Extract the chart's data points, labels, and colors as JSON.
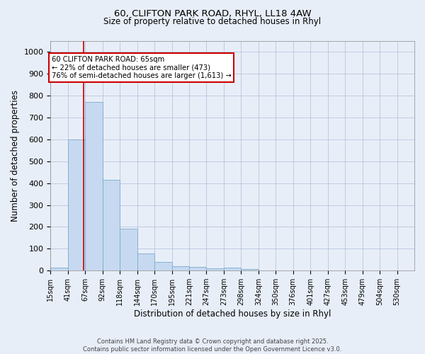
{
  "title1": "60, CLIFTON PARK ROAD, RHYL, LL18 4AW",
  "title2": "Size of property relative to detached houses in Rhyl",
  "xlabel": "Distribution of detached houses by size in Rhyl",
  "ylabel": "Number of detached properties",
  "bin_labels": [
    "15sqm",
    "41sqm",
    "67sqm",
    "92sqm",
    "118sqm",
    "144sqm",
    "170sqm",
    "195sqm",
    "221sqm",
    "247sqm",
    "273sqm",
    "298sqm",
    "324sqm",
    "350sqm",
    "376sqm",
    "401sqm",
    "427sqm",
    "453sqm",
    "479sqm",
    "504sqm",
    "530sqm"
  ],
  "bar_values": [
    15,
    600,
    770,
    415,
    193,
    78,
    40,
    20,
    18,
    12,
    15,
    8,
    2,
    1,
    0,
    0,
    0,
    0,
    0,
    0,
    0
  ],
  "bar_color": "#c6d9f0",
  "bar_edge_color": "#7aacce",
  "annotation_title": "60 CLIFTON PARK ROAD: 65sqm",
  "annotation_line1": "← 22% of detached houses are smaller (473)",
  "annotation_line2": "76% of semi-detached houses are larger (1,613) →",
  "annotation_box_color": "#ffffff",
  "annotation_box_edge_color": "#cc0000",
  "red_line_color": "#cc0000",
  "ylim": [
    0,
    1050
  ],
  "yticks": [
    0,
    100,
    200,
    300,
    400,
    500,
    600,
    700,
    800,
    900,
    1000
  ],
  "footer1": "Contains HM Land Registry data © Crown copyright and database right 2025.",
  "footer2": "Contains public sector information licensed under the Open Government Licence v3.0.",
  "bg_color": "#e8eef8",
  "plot_bg_color": "#e8eef8",
  "grid_color": "#b0bcd8"
}
